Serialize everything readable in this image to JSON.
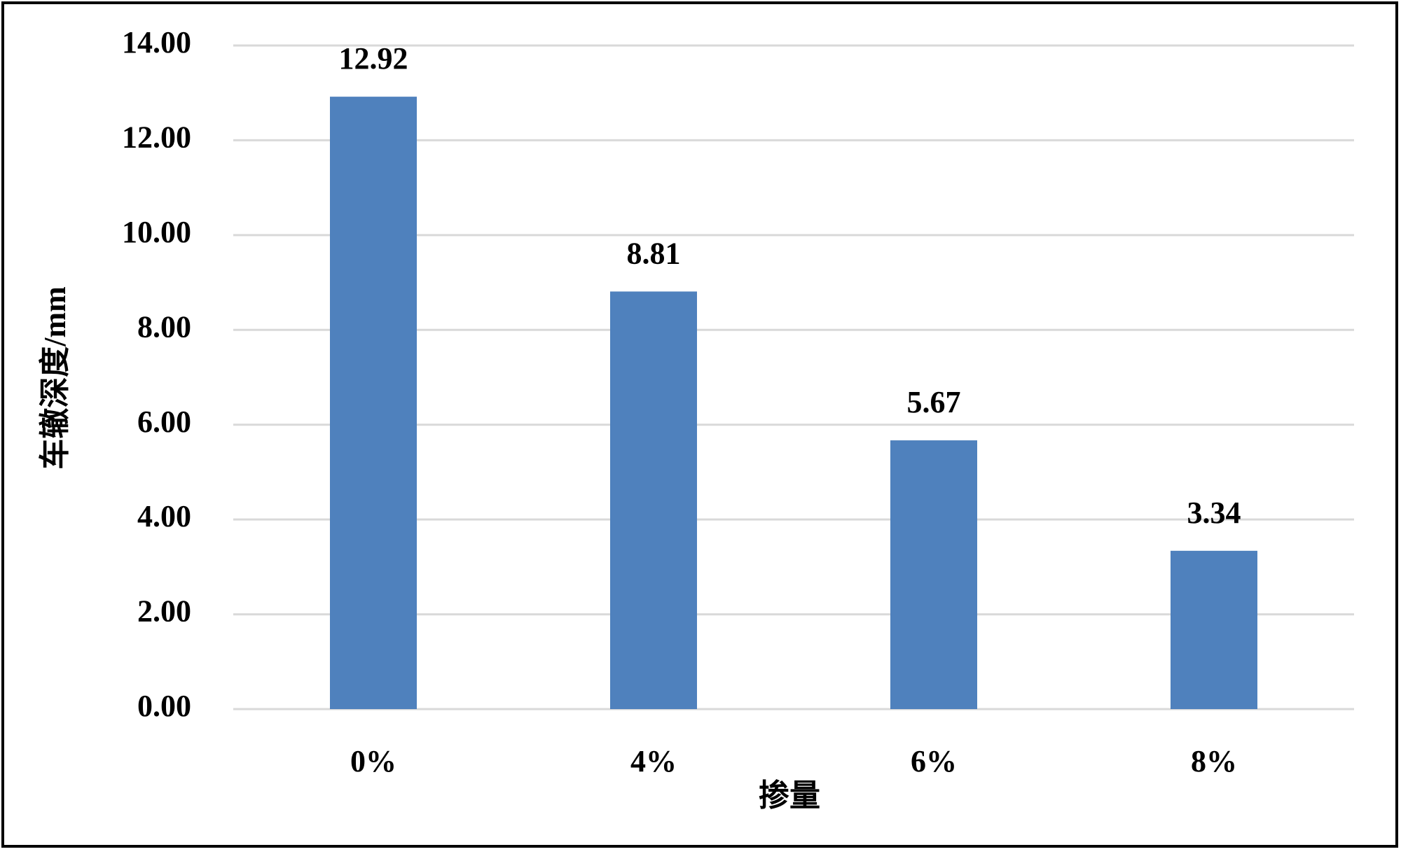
{
  "chart_data": {
    "type": "bar",
    "x_label": "掺量",
    "y_label": "车辙深度/mm",
    "categories": [
      "0%",
      "4%",
      "6%",
      "8%"
    ],
    "values": [
      12.92,
      8.81,
      5.67,
      3.34
    ],
    "color": "#4f81bd",
    "ylim": [
      0,
      14
    ],
    "yticks": [
      {
        "value": 0,
        "label": "0.00"
      },
      {
        "value": 2,
        "label": "2.00"
      },
      {
        "value": 4,
        "label": "4.00"
      },
      {
        "value": 6,
        "label": "6.00"
      },
      {
        "value": 8,
        "label": "8.00"
      },
      {
        "value": 10,
        "label": "10.00"
      },
      {
        "value": 12,
        "label": "12.00"
      },
      {
        "value": 14,
        "label": "14.00"
      }
    ],
    "grid": true
  }
}
